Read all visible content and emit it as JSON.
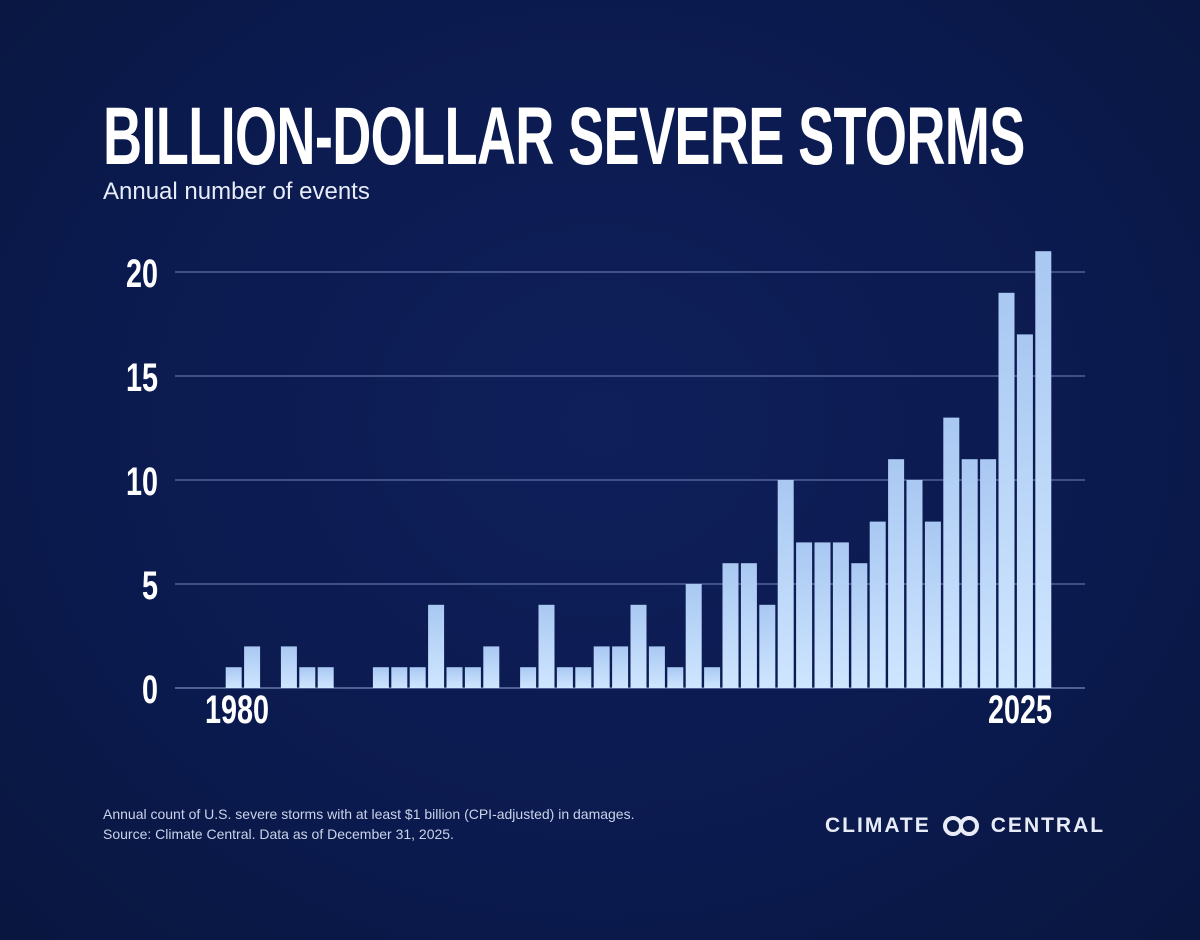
{
  "chart_data": {
    "type": "bar",
    "title": "BILLION-DOLLAR SEVERE STORMS",
    "subtitle": "Annual number of events",
    "xlabel": "",
    "ylabel": "",
    "x_tick_labels": [
      "1980",
      "2025"
    ],
    "y_ticks": [
      0,
      5,
      10,
      15,
      20
    ],
    "ylim": [
      0,
      21
    ],
    "grid": true,
    "categories": [
      1980,
      1981,
      1982,
      1983,
      1984,
      1985,
      1986,
      1987,
      1988,
      1989,
      1990,
      1991,
      1992,
      1993,
      1994,
      1995,
      1996,
      1997,
      1998,
      1999,
      2000,
      2001,
      2002,
      2003,
      2004,
      2005,
      2006,
      2007,
      2008,
      2009,
      2010,
      2011,
      2012,
      2013,
      2014,
      2015,
      2016,
      2017,
      2018,
      2019,
      2020,
      2021,
      2022,
      2023,
      2024,
      2025
    ],
    "values": [
      0,
      1,
      2,
      0,
      2,
      1,
      1,
      0,
      0,
      1,
      1,
      1,
      4,
      1,
      1,
      2,
      0,
      1,
      4,
      1,
      1,
      2,
      2,
      4,
      2,
      1,
      5,
      1,
      6,
      6,
      4,
      10,
      7,
      7,
      7,
      6,
      8,
      11,
      10,
      8,
      13,
      11,
      11,
      19,
      17,
      21
    ],
    "bar_color": "#bcd8fb"
  },
  "footer": {
    "note_line1": "Annual count of U.S. severe storms with at least $1 billion (CPI-adjusted) in damages.",
    "note_line2": "Source: Climate Central. Data as of December 31, 2025.",
    "logo_left": "CLIMATE",
    "logo_right": "CENTRAL"
  }
}
